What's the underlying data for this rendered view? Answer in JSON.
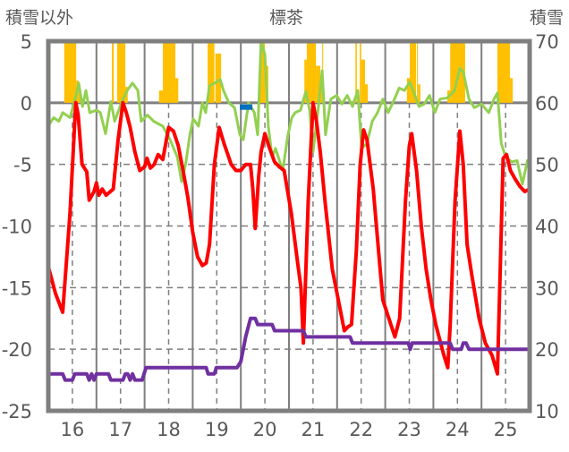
{
  "chart_data": {
    "type": "line",
    "title": "標茶",
    "ylabel_left": "積雪以外",
    "ylabel_right": "積雪",
    "xlim": [
      15.5,
      25.5
    ],
    "ylim_left": [
      -25,
      5
    ],
    "ylim_right": [
      10,
      70
    ],
    "x_ticks": [
      16,
      17,
      18,
      19,
      20,
      21,
      22,
      23,
      24,
      25
    ],
    "x_tick_labels": [
      "16",
      "17",
      "18",
      "19",
      "20",
      "21",
      "22",
      "23",
      "24",
      "25"
    ],
    "y_left_ticks": [
      5,
      0,
      -5,
      -10,
      -15,
      -20,
      -25
    ],
    "y_left_tick_labels": [
      "5",
      "0",
      "-5",
      "-10",
      "-15",
      "-20",
      "-25"
    ],
    "y_right_ticks": [
      70,
      60,
      50,
      40,
      30,
      20,
      10
    ],
    "y_right_tick_labels": [
      "70",
      "60",
      "50",
      "40",
      "30",
      "20",
      "10"
    ],
    "colors": {
      "temp": "#ff0000",
      "green": "#92d050",
      "snow_depth": "#7030a0",
      "bars": "#ffc000",
      "blue": "#0070c0",
      "frame": "#7f7f7f"
    },
    "series": [
      {
        "name": "temperature",
        "axis": "left",
        "color": "#ff0000",
        "points": [
          [
            15.5,
            -13.3
          ],
          [
            15.65,
            -15.5
          ],
          [
            15.8,
            -17
          ],
          [
            15.95,
            -9
          ],
          [
            16.07,
            0
          ],
          [
            16.12,
            -1
          ],
          [
            16.2,
            -5
          ],
          [
            16.3,
            -5.6
          ],
          [
            16.35,
            -7.9
          ],
          [
            16.45,
            -7.2
          ],
          [
            16.5,
            -6.5
          ],
          [
            16.55,
            -7.5
          ],
          [
            16.62,
            -7
          ],
          [
            16.7,
            -7.5
          ],
          [
            16.85,
            -7
          ],
          [
            16.95,
            -3
          ],
          [
            17.05,
            0
          ],
          [
            17.12,
            -0.8
          ],
          [
            17.2,
            -2
          ],
          [
            17.3,
            -4
          ],
          [
            17.4,
            -5.5
          ],
          [
            17.5,
            -5.2
          ],
          [
            17.55,
            -4.5
          ],
          [
            17.62,
            -5.3
          ],
          [
            17.7,
            -5
          ],
          [
            17.78,
            -4.2
          ],
          [
            17.88,
            -4.6
          ],
          [
            18.0,
            -2
          ],
          [
            18.1,
            -2.3
          ],
          [
            18.2,
            -3.5
          ],
          [
            18.3,
            -5.5
          ],
          [
            18.4,
            -7.7
          ],
          [
            18.5,
            -10.5
          ],
          [
            18.6,
            -12.5
          ],
          [
            18.7,
            -13.2
          ],
          [
            18.78,
            -13
          ],
          [
            18.85,
            -11.5
          ],
          [
            18.95,
            -5
          ],
          [
            19.05,
            -2
          ],
          [
            19.15,
            -3.3
          ],
          [
            19.3,
            -5
          ],
          [
            19.4,
            -5.5
          ],
          [
            19.5,
            -5.5
          ],
          [
            19.6,
            -5
          ],
          [
            19.7,
            -5
          ],
          [
            19.75,
            -7
          ],
          [
            19.8,
            -10.2
          ],
          [
            19.87,
            -6
          ],
          [
            19.92,
            -4
          ],
          [
            20.0,
            -2.5
          ],
          [
            20.08,
            -3.5
          ],
          [
            20.2,
            -4.8
          ],
          [
            20.3,
            -5.2
          ],
          [
            20.4,
            -5.5
          ],
          [
            20.55,
            -9
          ],
          [
            20.68,
            -13
          ],
          [
            20.75,
            -15
          ],
          [
            20.8,
            -19.5
          ],
          [
            20.9,
            -8
          ],
          [
            21.0,
            0
          ],
          [
            21.07,
            -1.5
          ],
          [
            21.15,
            -4
          ],
          [
            21.25,
            -8
          ],
          [
            21.4,
            -13.5
          ],
          [
            21.55,
            -16.5
          ],
          [
            21.65,
            -18.5
          ],
          [
            21.72,
            -18.2
          ],
          [
            21.8,
            -18
          ],
          [
            21.9,
            -12
          ],
          [
            21.98,
            -5
          ],
          [
            22.05,
            -2.2
          ],
          [
            22.12,
            -3
          ],
          [
            22.25,
            -7
          ],
          [
            22.35,
            -11.5
          ],
          [
            22.45,
            -16
          ],
          [
            22.6,
            -17.8
          ],
          [
            22.7,
            -19
          ],
          [
            22.8,
            -17.5
          ],
          [
            22.92,
            -8
          ],
          [
            23.0,
            -3.5
          ],
          [
            23.05,
            -2.5
          ],
          [
            23.15,
            -5.5
          ],
          [
            23.25,
            -10
          ],
          [
            23.35,
            -13.5
          ],
          [
            23.45,
            -16
          ],
          [
            23.55,
            -18
          ],
          [
            23.65,
            -19.5
          ],
          [
            23.72,
            -20.5
          ],
          [
            23.8,
            -21.5
          ],
          [
            23.85,
            -18
          ],
          [
            23.95,
            -8
          ],
          [
            24.05,
            -2.3
          ],
          [
            24.12,
            -5
          ],
          [
            24.2,
            -11.5
          ],
          [
            24.3,
            -14
          ],
          [
            24.45,
            -17.5
          ],
          [
            24.58,
            -19.5
          ],
          [
            24.65,
            -20
          ],
          [
            24.72,
            -20.5
          ],
          [
            24.83,
            -22
          ],
          [
            24.9,
            -12
          ],
          [
            24.95,
            -4.5
          ],
          [
            25.02,
            -4.2
          ],
          [
            25.1,
            -5.5
          ],
          [
            25.2,
            -6.2
          ],
          [
            25.3,
            -6.8
          ],
          [
            25.4,
            -7.2
          ],
          [
            25.5,
            -7
          ]
        ]
      },
      {
        "name": "green-series",
        "axis": "left",
        "color": "#92d050",
        "points": [
          [
            15.5,
            -1.9
          ],
          [
            15.61,
            -1.2
          ],
          [
            15.72,
            -1.5
          ],
          [
            15.8,
            -0.8
          ],
          [
            15.95,
            -1.2
          ],
          [
            16.06,
            0.3
          ],
          [
            16.13,
            1.6
          ],
          [
            16.21,
            -0.3
          ],
          [
            16.28,
            1
          ],
          [
            16.36,
            -0.8
          ],
          [
            16.5,
            -0.6
          ],
          [
            16.58,
            -0.8
          ],
          [
            16.69,
            -2.5
          ],
          [
            16.8,
            0.1
          ],
          [
            16.88,
            -1.5
          ],
          [
            17.02,
            0
          ],
          [
            17.14,
            1
          ],
          [
            17.25,
            1.6
          ],
          [
            17.36,
            1
          ],
          [
            17.43,
            -1.5
          ],
          [
            17.56,
            -1
          ],
          [
            17.69,
            -1.5
          ],
          [
            17.88,
            -1.9
          ],
          [
            18.03,
            -3
          ],
          [
            18.18,
            -4.4
          ],
          [
            18.27,
            -6.4
          ],
          [
            18.36,
            -4.8
          ],
          [
            18.44,
            -2.6
          ],
          [
            18.51,
            -1.3
          ],
          [
            18.62,
            -1.9
          ],
          [
            18.7,
            0
          ],
          [
            18.77,
            -0.8
          ],
          [
            18.85,
            1.4
          ],
          [
            18.96,
            1.6
          ],
          [
            19.07,
            1.9
          ],
          [
            19.14,
            1
          ],
          [
            19.25,
            0
          ],
          [
            19.37,
            -0.4
          ],
          [
            19.48,
            -2.6
          ],
          [
            19.55,
            -3
          ],
          [
            19.66,
            0
          ],
          [
            19.78,
            -0.8
          ],
          [
            19.85,
            -2.6
          ],
          [
            19.92,
            5
          ],
          [
            20.0,
            3.9
          ],
          [
            20.07,
            -1.9
          ],
          [
            20.15,
            -4.4
          ],
          [
            20.22,
            -3.7
          ],
          [
            20.37,
            -5.5
          ],
          [
            20.48,
            -2.6
          ],
          [
            20.56,
            -1.2
          ],
          [
            20.63,
            -0.8
          ],
          [
            20.74,
            -0.6
          ],
          [
            20.85,
            0.9
          ],
          [
            20.93,
            -0.6
          ],
          [
            21.0,
            -4
          ],
          [
            21.11,
            -0.4
          ],
          [
            21.19,
            2.6
          ],
          [
            21.26,
            -2.6
          ],
          [
            21.37,
            0.3
          ],
          [
            21.49,
            0.6
          ],
          [
            21.6,
            -0.1
          ],
          [
            21.71,
            0.6
          ],
          [
            21.82,
            -0.3
          ],
          [
            21.93,
            1
          ],
          [
            22.01,
            -3.7
          ],
          [
            22.12,
            -3.3
          ],
          [
            22.23,
            -1.5
          ],
          [
            22.34,
            -0.8
          ],
          [
            22.45,
            0.3
          ],
          [
            22.56,
            -0.8
          ],
          [
            22.67,
            0.1
          ],
          [
            22.79,
            1.2
          ],
          [
            22.9,
            1
          ],
          [
            23.01,
            1.7
          ],
          [
            23.08,
            1
          ],
          [
            23.2,
            -0.3
          ],
          [
            23.31,
            -0.1
          ],
          [
            23.42,
            0.6
          ],
          [
            23.53,
            -0.8
          ],
          [
            23.64,
            0.3
          ],
          [
            23.79,
            0.4
          ],
          [
            23.94,
            1
          ],
          [
            24.05,
            2.8
          ],
          [
            24.12,
            2.5
          ],
          [
            24.24,
            0.3
          ],
          [
            24.35,
            -0.4
          ],
          [
            24.5,
            -0.1
          ],
          [
            24.65,
            -0.8
          ],
          [
            24.76,
            0.3
          ],
          [
            24.83,
            0.8
          ],
          [
            24.91,
            -3.3
          ],
          [
            25.0,
            -4.4
          ],
          [
            25.13,
            -4.8
          ],
          [
            25.24,
            -4.7
          ],
          [
            25.35,
            -6.6
          ],
          [
            25.46,
            -4.6
          ]
        ]
      },
      {
        "name": "snow-depth",
        "axis": "right",
        "color": "#7030a0",
        "points": [
          [
            15.5,
            16
          ],
          [
            15.8,
            16
          ],
          [
            15.85,
            15
          ],
          [
            16.0,
            15
          ],
          [
            16.05,
            16
          ],
          [
            16.3,
            16
          ],
          [
            16.35,
            15
          ],
          [
            16.4,
            16
          ],
          [
            16.45,
            15
          ],
          [
            16.5,
            16
          ],
          [
            16.75,
            16
          ],
          [
            16.8,
            15
          ],
          [
            17.05,
            15
          ],
          [
            17.1,
            16
          ],
          [
            17.15,
            16
          ],
          [
            17.2,
            15
          ],
          [
            17.25,
            16
          ],
          [
            17.3,
            15
          ],
          [
            17.45,
            15
          ],
          [
            17.53,
            17
          ],
          [
            18.78,
            17
          ],
          [
            18.82,
            16
          ],
          [
            18.95,
            16
          ],
          [
            18.99,
            17
          ],
          [
            19.42,
            17
          ],
          [
            19.5,
            18
          ],
          [
            19.6,
            22
          ],
          [
            19.7,
            25
          ],
          [
            19.8,
            25
          ],
          [
            19.85,
            24
          ],
          [
            20.15,
            24
          ],
          [
            20.2,
            23
          ],
          [
            20.8,
            23
          ],
          [
            20.85,
            22
          ],
          [
            21.77,
            22
          ],
          [
            21.82,
            21
          ],
          [
            22.98,
            21
          ],
          [
            23.02,
            20
          ],
          [
            23.06,
            21
          ],
          [
            23.85,
            21
          ],
          [
            23.9,
            20
          ],
          [
            24.08,
            20
          ],
          [
            24.12,
            21
          ],
          [
            24.18,
            21
          ],
          [
            24.24,
            20
          ],
          [
            25.5,
            20
          ]
        ]
      },
      {
        "name": "blue-series",
        "axis": "left",
        "color": "#0070c0",
        "points": [
          [
            19.48,
            -0.35
          ],
          [
            19.74,
            -0.35
          ]
        ]
      }
    ],
    "bars": {
      "name": "snowfall",
      "axis": "left",
      "color": "#ffc000",
      "values": [
        [
          15.83,
          16.08,
          5
        ],
        [
          16.08,
          16.13,
          1.8
        ],
        [
          16.13,
          16.17,
          0.8
        ],
        [
          16.82,
          16.86,
          5
        ],
        [
          16.93,
          17.1,
          5
        ],
        [
          17.1,
          17.15,
          1.3
        ],
        [
          17.8,
          17.88,
          1
        ],
        [
          17.88,
          18.14,
          5
        ],
        [
          18.14,
          18.2,
          2
        ],
        [
          18.81,
          18.95,
          5
        ],
        [
          18.97,
          19.09,
          4
        ],
        [
          19.89,
          20.0,
          5
        ],
        [
          20.0,
          20.07,
          3
        ],
        [
          20.82,
          20.87,
          3.5
        ],
        [
          20.87,
          21.06,
          5
        ],
        [
          21.06,
          21.15,
          3
        ],
        [
          21.15,
          21.19,
          1.5
        ],
        [
          21.19,
          21.21,
          5
        ],
        [
          21.88,
          21.91,
          5
        ],
        [
          21.97,
          22.0,
          5
        ],
        [
          22.0,
          22.08,
          3.5
        ],
        [
          22.08,
          22.14,
          1.5
        ],
        [
          22.95,
          23.01,
          2
        ],
        [
          23.01,
          23.14,
          5
        ],
        [
          23.16,
          23.18,
          5
        ],
        [
          23.18,
          23.23,
          1.5
        ],
        [
          23.79,
          23.85,
          1
        ],
        [
          23.85,
          24.16,
          5
        ],
        [
          24.83,
          25.09,
          5
        ],
        [
          25.09,
          25.15,
          2
        ]
      ]
    }
  }
}
